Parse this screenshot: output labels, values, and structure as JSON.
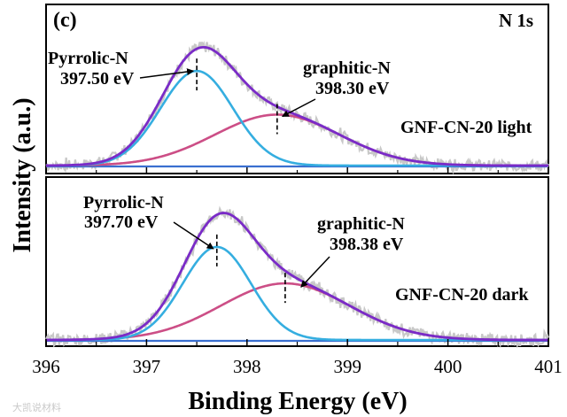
{
  "chart_data": {
    "type": "line",
    "panel_label": "(c)",
    "core_level": "N 1s",
    "xlabel": "Binding Energy (eV)",
    "ylabel": "Intensity (a.u.)",
    "xlim": [
      396,
      401
    ],
    "x_ticks": [
      "396",
      "397",
      "398",
      "399",
      "400",
      "401"
    ],
    "colors": {
      "raw": "#c8c8c8",
      "envelope": "#7a2bc7",
      "pyrrolic": "#35aee0",
      "graphitic": "#cc4e86",
      "baseline": "#3a6fd0"
    },
    "panels": [
      {
        "sample": "GNF-CN-20 light",
        "baseline": 0.0,
        "pyrrolic": {
          "label": "Pyrrolic-N",
          "energy_label": "397.50 eV",
          "center": 397.5,
          "height": 0.78,
          "sigma": 0.36
        },
        "graphitic": {
          "label": "graphitic-N",
          "energy_label": "398.30 eV",
          "center": 398.3,
          "height": 0.42,
          "sigma": 0.62
        }
      },
      {
        "sample": "GNF-CN-20 dark",
        "baseline": 0.0,
        "pyrrolic": {
          "label": "Pyrrolic-N",
          "energy_label": "397.70 eV",
          "center": 397.7,
          "height": 0.74,
          "sigma": 0.34
        },
        "graphitic": {
          "label": "graphitic-N",
          "energy_label": "398.38 eV",
          "center": 398.38,
          "height": 0.45,
          "sigma": 0.64
        }
      }
    ]
  },
  "watermark": "大凯说材料"
}
